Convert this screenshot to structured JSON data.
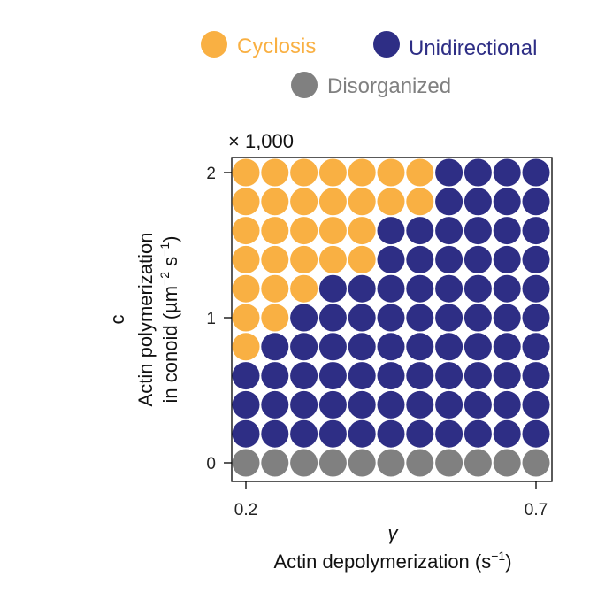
{
  "chart_data": {
    "type": "scatter",
    "title": "",
    "legend": {
      "placement": "top",
      "entries": [
        {
          "name": "Cyclosis",
          "color": "#F9B043"
        },
        {
          "name": "Unidirectional",
          "color": "#2E2E85"
        },
        {
          "name": "Disorganized",
          "color": "#808080"
        }
      ]
    },
    "x_axis": {
      "symbol": "γ",
      "label": "Actin depolymerization (s",
      "label_unit_sup": "−1",
      "label_close": ")",
      "range": [
        0.2,
        0.7
      ],
      "ticks": [
        {
          "value": 0.2,
          "label": "0.2"
        },
        {
          "value": 0.7,
          "label": "0.7"
        }
      ]
    },
    "y_axis": {
      "symbol": "c",
      "label_line1": "Actin polymerization",
      "label_line2_a": "in conoid (µm",
      "label_line2_sup1": "−2",
      "label_line2_b": " s",
      "label_line2_sup2": "−1",
      "label_line2_c": ")",
      "multiplier_label": "× 1,000",
      "range": [
        0,
        2000
      ],
      "ticks": [
        {
          "value": 0,
          "label": "0"
        },
        {
          "value": 1000,
          "label": "1"
        },
        {
          "value": 2000,
          "label": "2"
        }
      ]
    },
    "x_values": [
      0.2,
      0.25,
      0.3,
      0.35,
      0.4,
      0.45,
      0.5,
      0.55,
      0.6,
      0.65,
      0.7
    ],
    "y_values": [
      2000,
      1800,
      1600,
      1400,
      1200,
      1000,
      800,
      600,
      400,
      200,
      0
    ],
    "grid_states": [
      [
        "Cyclosis",
        "Cyclosis",
        "Cyclosis",
        "Cyclosis",
        "Cyclosis",
        "Cyclosis",
        "Cyclosis",
        "Unidirectional",
        "Unidirectional",
        "Unidirectional",
        "Unidirectional"
      ],
      [
        "Cyclosis",
        "Cyclosis",
        "Cyclosis",
        "Cyclosis",
        "Cyclosis",
        "Cyclosis",
        "Cyclosis",
        "Unidirectional",
        "Unidirectional",
        "Unidirectional",
        "Unidirectional"
      ],
      [
        "Cyclosis",
        "Cyclosis",
        "Cyclosis",
        "Cyclosis",
        "Cyclosis",
        "Unidirectional",
        "Unidirectional",
        "Unidirectional",
        "Unidirectional",
        "Unidirectional",
        "Unidirectional"
      ],
      [
        "Cyclosis",
        "Cyclosis",
        "Cyclosis",
        "Cyclosis",
        "Cyclosis",
        "Unidirectional",
        "Unidirectional",
        "Unidirectional",
        "Unidirectional",
        "Unidirectional",
        "Unidirectional"
      ],
      [
        "Cyclosis",
        "Cyclosis",
        "Cyclosis",
        "Unidirectional",
        "Unidirectional",
        "Unidirectional",
        "Unidirectional",
        "Unidirectional",
        "Unidirectional",
        "Unidirectional",
        "Unidirectional"
      ],
      [
        "Cyclosis",
        "Cyclosis",
        "Unidirectional",
        "Unidirectional",
        "Unidirectional",
        "Unidirectional",
        "Unidirectional",
        "Unidirectional",
        "Unidirectional",
        "Unidirectional",
        "Unidirectional"
      ],
      [
        "Cyclosis",
        "Unidirectional",
        "Unidirectional",
        "Unidirectional",
        "Unidirectional",
        "Unidirectional",
        "Unidirectional",
        "Unidirectional",
        "Unidirectional",
        "Unidirectional",
        "Unidirectional"
      ],
      [
        "Unidirectional",
        "Unidirectional",
        "Unidirectional",
        "Unidirectional",
        "Unidirectional",
        "Unidirectional",
        "Unidirectional",
        "Unidirectional",
        "Unidirectional",
        "Unidirectional",
        "Unidirectional"
      ],
      [
        "Unidirectional",
        "Unidirectional",
        "Unidirectional",
        "Unidirectional",
        "Unidirectional",
        "Unidirectional",
        "Unidirectional",
        "Unidirectional",
        "Unidirectional",
        "Unidirectional",
        "Unidirectional"
      ],
      [
        "Unidirectional",
        "Unidirectional",
        "Unidirectional",
        "Unidirectional",
        "Unidirectional",
        "Unidirectional",
        "Unidirectional",
        "Unidirectional",
        "Unidirectional",
        "Unidirectional",
        "Unidirectional"
      ],
      [
        "Disorganized",
        "Disorganized",
        "Disorganized",
        "Disorganized",
        "Disorganized",
        "Disorganized",
        "Disorganized",
        "Disorganized",
        "Disorganized",
        "Disorganized",
        "Disorganized"
      ]
    ],
    "grid": false
  }
}
